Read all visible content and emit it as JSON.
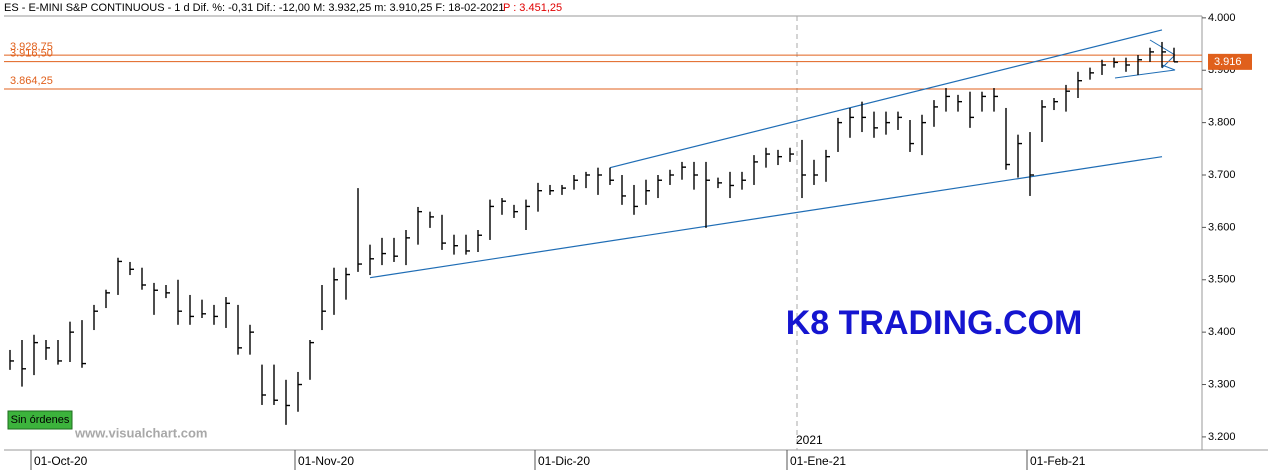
{
  "chart_data": {
    "type": "ohlc",
    "title": "ES - E-MINI S&P CONTINUOUS -  1 d  Dif. %: -0,31  Dif.: -12,00  M: 3.932,25  m: 3.910,25  F: 18-02-2021",
    "price_note": "P : 3.451,25",
    "watermark": "K8 TRADING.COM",
    "source": "www.visualchart.com",
    "status": "Sin órdenes",
    "year_label": "2021",
    "categories": [
      null,
      null,
      "01-Oct-20",
      null,
      null,
      null,
      null,
      null,
      null,
      null,
      null,
      null,
      null,
      null,
      null,
      null,
      null,
      null,
      null,
      null,
      null,
      null,
      null,
      null,
      "01-Nov-20",
      null,
      null,
      null,
      null,
      null,
      null,
      null,
      null,
      null,
      null,
      null,
      null,
      null,
      null,
      null,
      null,
      null,
      null,
      null,
      "01-Dic-20",
      null,
      null,
      null,
      null,
      null,
      null,
      null,
      null,
      null,
      null,
      null,
      null,
      null,
      null,
      null,
      null,
      null,
      null,
      null,
      null,
      "01-Ene-21",
      null,
      null,
      null,
      null,
      null,
      null,
      null,
      null,
      null,
      null,
      null,
      null,
      null,
      null,
      null,
      null,
      null,
      null,
      null,
      "01-Feb-21",
      null,
      null,
      null,
      null,
      null,
      null,
      null,
      null,
      null,
      null,
      null,
      null
    ],
    "high": [
      3366,
      3385,
      3395,
      3385,
      3385,
      3420,
      3423,
      3452,
      3481,
      3542,
      3534,
      3523,
      3494,
      3490,
      3500,
      3471,
      3462,
      3452,
      3467,
      3452,
      3414,
      3338,
      3338,
      3309,
      3324,
      3385,
      3490,
      3523,
      3523,
      3675,
      3567,
      3580,
      3580,
      3595,
      3639,
      3630,
      3624,
      3586,
      3586,
      3595,
      3653,
      3656,
      3643,
      3653,
      3685,
      3681,
      3681,
      3700,
      3706,
      3714,
      3714,
      3700,
      3681,
      3691,
      3700,
      3710,
      3725,
      3725,
      3725,
      3695,
      3706,
      3706,
      3738,
      3752,
      3748,
      3752,
      3767,
      3729,
      3748,
      3809,
      3828,
      3840,
      3821,
      3821,
      3821,
      3805,
      3815,
      3843,
      3866,
      3853,
      3859,
      3859,
      3866,
      3828,
      3777,
      3782,
      3843,
      3847,
      3872,
      3897,
      3905,
      3920,
      3924,
      3924,
      3929,
      3943,
      3954,
      3943
    ],
    "low": [
      3328,
      3296,
      3318,
      3347,
      3338,
      3343,
      3332,
      3404,
      3446,
      3471,
      3509,
      3481,
      3433,
      3465,
      3414,
      3414,
      3427,
      3414,
      3408,
      3357,
      3357,
      3261,
      3261,
      3223,
      3248,
      3309,
      3404,
      3433,
      3462,
      3515,
      3509,
      3528,
      3534,
      3528,
      3567,
      3599,
      3557,
      3548,
      3548,
      3553,
      3576,
      3624,
      3618,
      3595,
      3630,
      3662,
      3662,
      3672,
      3675,
      3662,
      3681,
      3643,
      3624,
      3643,
      3656,
      3681,
      3691,
      3672,
      3599,
      3675,
      3656,
      3672,
      3681,
      3714,
      3719,
      3725,
      3656,
      3681,
      3687,
      3744,
      3771,
      3782,
      3771,
      3777,
      3786,
      3744,
      3738,
      3792,
      3821,
      3821,
      3790,
      3821,
      3821,
      3710,
      3695,
      3660,
      3763,
      3824,
      3821,
      3847,
      3882,
      3891,
      3905,
      3897,
      3891,
      3916,
      3905,
      3916
    ],
    "close": [
      3345,
      3330,
      3380,
      3370,
      3345,
      3400,
      3340,
      3440,
      3475,
      3535,
      3520,
      3490,
      3480,
      3475,
      3440,
      3430,
      3435,
      3430,
      3455,
      3370,
      3400,
      3280,
      3270,
      3260,
      3300,
      3380,
      3440,
      3500,
      3510,
      3530,
      3540,
      3550,
      3545,
      3580,
      3630,
      3620,
      3570,
      3565,
      3555,
      3585,
      3640,
      3650,
      3630,
      3640,
      3670,
      3670,
      3675,
      3690,
      3700,
      3700,
      3690,
      3660,
      3640,
      3670,
      3690,
      3700,
      3715,
      3700,
      3690,
      3685,
      3680,
      3690,
      3725,
      3740,
      3735,
      3740,
      3700,
      3700,
      3735,
      3800,
      3810,
      3810,
      3790,
      3800,
      3810,
      3760,
      3800,
      3830,
      3850,
      3840,
      3810,
      3850,
      3850,
      3720,
      3760,
      3700,
      3830,
      3840,
      3860,
      3880,
      3895,
      3910,
      3915,
      3910,
      3920,
      3935,
      3935,
      3916
    ],
    "color": "#000000",
    "ylim": [
      3175,
      4015
    ],
    "yticks": [
      {
        "value": 3200,
        "label": "3.200"
      },
      {
        "value": 3300,
        "label": "3.300"
      },
      {
        "value": 3400,
        "label": "3.400"
      },
      {
        "value": 3500,
        "label": "3.500"
      },
      {
        "value": 3600,
        "label": "3.600"
      },
      {
        "value": 3700,
        "label": "3.700"
      },
      {
        "value": 3800,
        "label": "3.800"
      },
      {
        "value": 3900,
        "label": "3.900"
      },
      {
        "value": 4000,
        "label": "4.000"
      }
    ],
    "levels": [
      {
        "value": 3928.75,
        "label": "3.928,75"
      },
      {
        "value": 3916.5,
        "label": "3.916,50"
      },
      {
        "value": 3864.25,
        "label": "3.864,25"
      }
    ],
    "level_color": "#e0601c",
    "last_price": {
      "value": 3916,
      "label": "3.916"
    },
    "trendlines": [
      {
        "x": [
          50,
          96
        ],
        "y": [
          3714,
          3977
        ]
      },
      {
        "x": [
          30,
          96
        ],
        "y": [
          3504,
          3735
        ]
      }
    ],
    "trend_color": "#1f6db5"
  }
}
